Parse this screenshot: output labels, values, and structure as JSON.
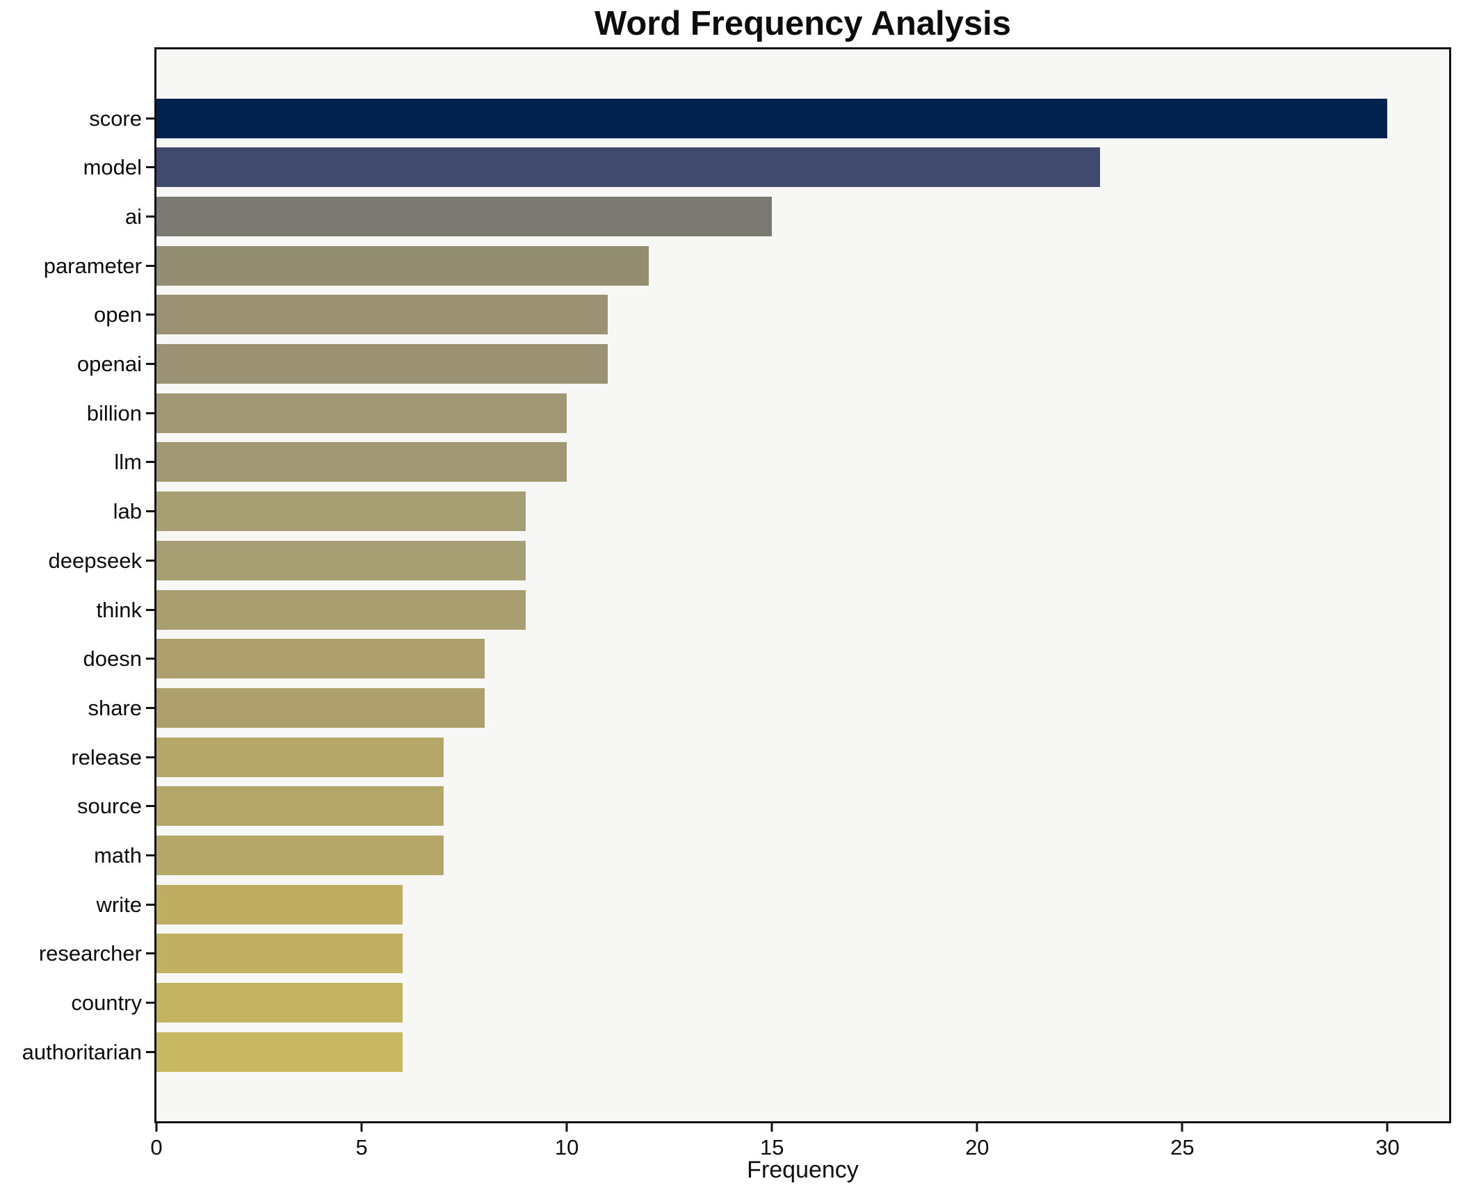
{
  "title": "Word Frequency Analysis",
  "chart_data": {
    "type": "bar",
    "orientation": "horizontal",
    "title": "Word Frequency Analysis",
    "xlabel": "Frequency",
    "ylabel": "",
    "categories": [
      "score",
      "model",
      "ai",
      "parameter",
      "open",
      "openai",
      "billion",
      "llm",
      "lab",
      "deepseek",
      "think",
      "doesn",
      "share",
      "release",
      "source",
      "math",
      "write",
      "researcher",
      "country",
      "authoritarian"
    ],
    "values": [
      30,
      23,
      15,
      12,
      11,
      11,
      10,
      10,
      9,
      9,
      9,
      8,
      8,
      7,
      7,
      7,
      6,
      6,
      6,
      6
    ],
    "bar_colors": [
      "#01224e",
      "#3f4a6e",
      "#7a7a72",
      "#938d72",
      "#9b9274",
      "#9b9274",
      "#a19873",
      "#a19873",
      "#a89e73",
      "#a89e73",
      "#a89e70",
      "#aea06c",
      "#aea06c",
      "#b4a767",
      "#b4a767",
      "#b4a767",
      "#bfae61",
      "#c1b061",
      "#c3b260",
      "#c9b862"
    ],
    "xlim": [
      0,
      31.5
    ],
    "xticks": [
      0,
      5,
      10,
      15,
      20,
      25,
      30
    ],
    "grid": false,
    "legend": "none",
    "plot_background": "#f7f7f6",
    "figure_background": "#ffffff",
    "spine_color": "#111111",
    "text_color": "#0d0d0d"
  }
}
